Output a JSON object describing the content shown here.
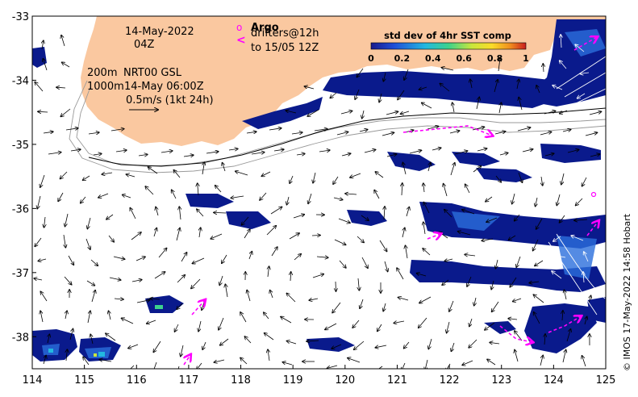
{
  "map": {
    "x_ticks": [
      "114",
      "115",
      "116",
      "117",
      "118",
      "119",
      "120",
      "121",
      "122",
      "123",
      "124",
      "125"
    ],
    "y_ticks": [
      "-33",
      "-34",
      "-35",
      "-36",
      "-37",
      "-38"
    ],
    "lon_range": [
      114,
      125
    ],
    "lat_range": [
      -38.5,
      -33
    ],
    "colors": {
      "land": "#fac8a0",
      "sst_low": "#0a1a8c",
      "sst_mid": "#2a6edc",
      "current_arrow": "#000000",
      "current_arrow_on_sst": "#ffffff",
      "drifter": "#ff00ff",
      "contour": "#999999"
    }
  },
  "annotations": {
    "date_line1": "14-May-2022",
    "date_line2": "04Z",
    "depth_200": "200m",
    "depth_1000": "1000m",
    "model_line": "NRT00 GSL",
    "model_time": "14-May 06:00Z",
    "scale_text": "0.5m/s (1kt 24h)"
  },
  "legend": {
    "argo_marker": "o",
    "argo_label": "Argo",
    "drifter_marker": "<",
    "drifter_label_1": "drifters@12h",
    "drifter_label_2": "to 15/05 12Z"
  },
  "colorbar": {
    "title": "std dev of 4hr SST comp",
    "ticks": [
      "0",
      "0.2",
      "0.4",
      "0.6",
      "0.8",
      "1"
    ],
    "stops": [
      "#1a1a8c",
      "#1f4fd8",
      "#22b8e0",
      "#3cd28c",
      "#c8e63c",
      "#fadc28",
      "#f08c1e",
      "#c81e1e"
    ]
  },
  "credit": "© IMOS 17-May-2022 14:58 Hobart"
}
